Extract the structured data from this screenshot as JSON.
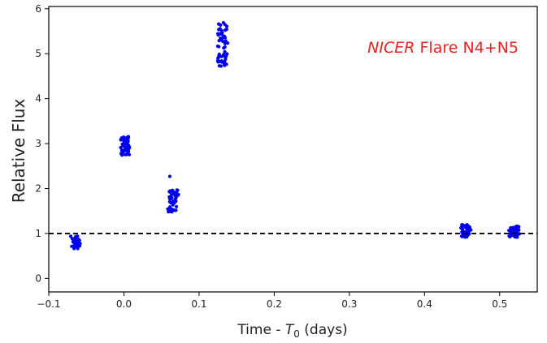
{
  "chart_data": {
    "type": "scatter",
    "title": "",
    "xlabel_prefix": "Time - ",
    "xlabel_var": "T",
    "xlabel_sub": "0",
    "xlabel_suffix": " (days)",
    "ylabel": "Relative Flux",
    "xlim": [
      -0.1,
      0.55
    ],
    "ylim": [
      -0.3,
      6.05
    ],
    "xticks": [
      -0.1,
      0.0,
      0.1,
      0.2,
      0.3,
      0.4,
      0.5
    ],
    "xtick_labels": [
      "−0.1",
      "0.0",
      "0.1",
      "0.2",
      "0.3",
      "0.4",
      "0.5"
    ],
    "yticks": [
      0,
      1,
      2,
      3,
      4,
      5,
      6
    ],
    "ytick_labels": [
      "0",
      "1",
      "2",
      "3",
      "4",
      "5",
      "6"
    ],
    "grid": false,
    "reference_line": {
      "y": 1.0,
      "style": "dashed",
      "color": "#000000"
    },
    "annotation": {
      "italic": "NICER",
      "rest": " Flare N4+N5",
      "color": "#e8231f",
      "placement": "top-right"
    },
    "series": [
      {
        "color": "#0000ee",
        "clusters": [
          {
            "x": [
              -0.069,
              -0.059
            ],
            "y": [
              0.63,
              0.98
            ],
            "n": 40
          },
          {
            "x": [
              -0.003,
              0.007
            ],
            "y": [
              2.72,
              3.18
            ],
            "n": 60
          },
          {
            "x": [
              0.059,
              0.071
            ],
            "y": [
              1.45,
              2.0
            ],
            "n": 45
          },
          {
            "x": [
              0.124,
              0.137
            ],
            "y": [
              4.65,
              5.8
            ],
            "n": 55
          },
          {
            "x": [
              0.449,
              0.46
            ],
            "y": [
              0.9,
              1.22
            ],
            "n": 50
          },
          {
            "x": [
              0.513,
              0.525
            ],
            "y": [
              0.9,
              1.18
            ],
            "n": 45
          }
        ],
        "outliers": [
          {
            "x": 0.061,
            "y": 2.27
          }
        ]
      }
    ]
  }
}
